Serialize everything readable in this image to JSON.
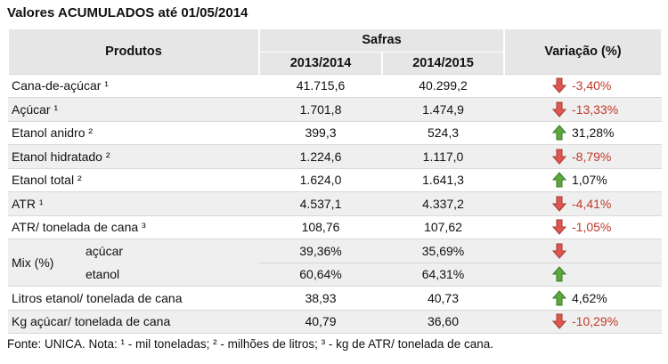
{
  "title": "Valores ACUMULADOS até 01/05/2014",
  "table": {
    "header": {
      "product": "Produtos",
      "group": "Safras",
      "years": [
        "2013/2014",
        "2014/2015"
      ],
      "variation": "Variação (%)"
    },
    "rows": [
      {
        "product": "Cana-de-açúcar ¹",
        "values": [
          "41.715,6",
          "40.299,2"
        ],
        "variation": "-3,40%",
        "arrow": "down"
      },
      {
        "product": "Açúcar ¹",
        "values": [
          "1.701,8",
          "1.474,9"
        ],
        "variation": "-13,33%",
        "arrow": "down"
      },
      {
        "product": "Etanol anidro ²",
        "values": [
          "399,3",
          "524,3"
        ],
        "variation": "31,28%",
        "arrow": "up"
      },
      {
        "product": "Etanol hidratado ²",
        "values": [
          "1.224,6",
          "1.117,0"
        ],
        "variation": "-8,79%",
        "arrow": "down"
      },
      {
        "product": "Etanol total ²",
        "values": [
          "1.624,0",
          "1.641,3"
        ],
        "variation": "1,07%",
        "arrow": "up"
      },
      {
        "product": "ATR ¹",
        "values": [
          "4.537,1",
          "4.337,2"
        ],
        "variation": "-4,41%",
        "arrow": "down"
      },
      {
        "product": "ATR/ tonelada de cana ³",
        "values": [
          "108,76",
          "107,62"
        ],
        "variation": "-1,05%",
        "arrow": "down"
      },
      {
        "product": "Mix (%)",
        "subrows": [
          {
            "label": "açúcar",
            "values": [
              "39,36%",
              "35,69%"
            ],
            "arrow": "down"
          },
          {
            "label": "etanol",
            "values": [
              "60,64%",
              "64,31%"
            ],
            "arrow": "up"
          }
        ]
      },
      {
        "product": "Litros etanol/ tonelada de cana",
        "values": [
          "38,93",
          "40,73"
        ],
        "variation": "4,62%",
        "arrow": "up"
      },
      {
        "product": "Kg açúcar/ tonelada de cana",
        "values": [
          "40,79",
          "36,60"
        ],
        "variation": "-10,29%",
        "arrow": "down"
      }
    ]
  },
  "footer": "Fonte: UNICA. Nota: ¹ - mil toneladas; ² - milhões de litros; ³ - kg de ATR/ tonelada de cana."
}
